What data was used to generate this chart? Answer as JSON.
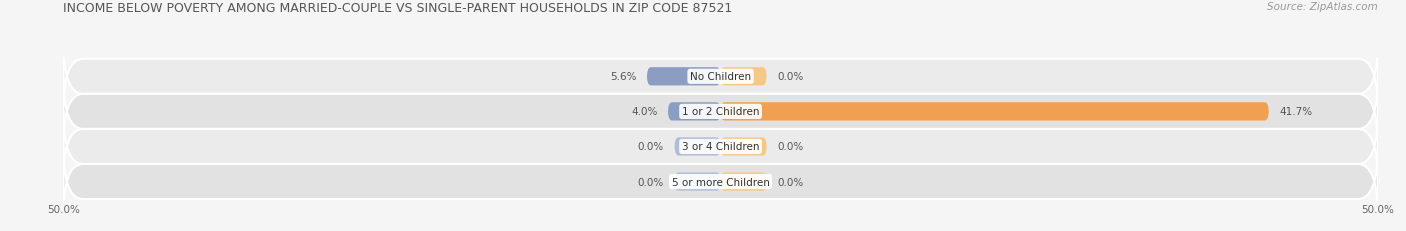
{
  "title": "INCOME BELOW POVERTY AMONG MARRIED-COUPLE VS SINGLE-PARENT HOUSEHOLDS IN ZIP CODE 87521",
  "source": "Source: ZipAtlas.com",
  "categories": [
    "No Children",
    "1 or 2 Children",
    "3 or 4 Children",
    "5 or more Children"
  ],
  "married_values": [
    5.6,
    4.0,
    0.0,
    0.0
  ],
  "single_values": [
    0.0,
    41.7,
    0.0,
    0.0
  ],
  "married_color": "#8b9dc3",
  "single_color": "#f0a050",
  "married_stub_color": "#b0bdd8",
  "single_stub_color": "#f5c888",
  "axis_limit": 50.0,
  "bar_height": 0.52,
  "stub_size": 3.5,
  "row_bg_light": "#ebebeb",
  "row_bg_dark": "#e2e2e2",
  "title_fontsize": 9.0,
  "label_fontsize": 7.5,
  "tick_fontsize": 7.5,
  "source_fontsize": 7.5,
  "fig_bg": "#f5f5f5"
}
